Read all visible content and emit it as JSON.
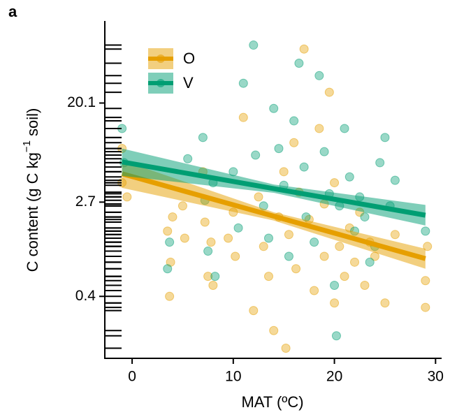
{
  "chart_data": {
    "type": "scatter",
    "panel_label": "a",
    "xlabel": "MAT (ºC)",
    "ylabel": [
      "C content (g C kg",
      "−1",
      " soil)"
    ],
    "xlim": [
      -2.7,
      30.6
    ],
    "xticks": [
      0,
      10,
      20,
      30
    ],
    "ylim": [
      0.114,
      106
    ],
    "yticks": [
      0.4,
      2.7,
      20.1
    ],
    "ylog": true,
    "rug": true,
    "legend": "top-left",
    "series": [
      {
        "name": "O",
        "color": "#E69F00",
        "x": [
          -1,
          -1,
          -0.5,
          3.5,
          3.7,
          3.8,
          4,
          5,
          5.2,
          7,
          7.2,
          7.5,
          7.8,
          8,
          9.5,
          10,
          10.2,
          11,
          12,
          12.5,
          13,
          13.5,
          14,
          14.5,
          15,
          15.2,
          15.5,
          16,
          16.2,
          16.5,
          17,
          17.5,
          18,
          18.5,
          19,
          19,
          19.5,
          20,
          20,
          20.5,
          21,
          21.5,
          22,
          22.5,
          23,
          23.5,
          24,
          25,
          26,
          29,
          29,
          29.2
        ],
        "values": [
          8,
          4,
          3,
          1.5,
          0.4,
          0.8,
          2,
          2.5,
          1.3,
          5,
          1.8,
          0.6,
          1.2,
          0.5,
          1.3,
          2.2,
          0.9,
          15,
          0.3,
          3,
          1.1,
          0.6,
          0.2,
          2,
          5,
          0.14,
          1.4,
          9,
          0.7,
          3.3,
          60,
          1.9,
          0.45,
          12,
          2.6,
          0.9,
          25,
          0.35,
          4,
          1.1,
          0.6,
          1.6,
          0.8,
          2.2,
          0.5,
          1.2,
          0.9,
          0.35,
          1.4,
          0.55,
          0.32,
          1.1
        ],
        "fit": {
          "x": [
            -1,
            14,
            29
          ],
          "values": [
            4.8,
            2.03,
            0.86
          ],
          "lower": [
            3.6,
            1.86,
            0.7
          ],
          "upper": [
            6.3,
            2.2,
            1.05
          ]
        }
      },
      {
        "name": "V",
        "color": "#009E73",
        "x": [
          -1,
          -0.8,
          3.5,
          3.7,
          5.5,
          7,
          7.2,
          7.5,
          8,
          8.2,
          10,
          10.5,
          11,
          12,
          12.2,
          13,
          13.5,
          14,
          14.5,
          15,
          15.5,
          16,
          16.5,
          17,
          17.2,
          18,
          18.5,
          19,
          19.5,
          20,
          20.2,
          20.5,
          21,
          21.5,
          22,
          22.5,
          23,
          23.5,
          24,
          24.5,
          25,
          25.5,
          26,
          29
        ],
        "values": [
          12,
          6,
          0.7,
          1.2,
          6.5,
          10,
          2.8,
          1,
          4,
          0.6,
          5,
          1.6,
          30,
          65,
          7,
          2.5,
          1.3,
          18,
          8,
          3.8,
          0.9,
          14,
          45,
          5.5,
          2,
          1.2,
          35,
          7.5,
          3.2,
          0.5,
          0.18,
          2.5,
          12,
          4.5,
          1.5,
          3,
          2,
          0.8,
          1.1,
          6,
          10,
          2.5,
          4.2,
          1.5
        ],
        "fit": {
          "x": [
            -1,
            14,
            29
          ],
          "values": [
            6.1,
            3.55,
            2.07
          ],
          "lower": [
            4.6,
            3.26,
            1.68
          ],
          "upper": [
            8.0,
            3.86,
            2.55
          ]
        }
      }
    ]
  }
}
